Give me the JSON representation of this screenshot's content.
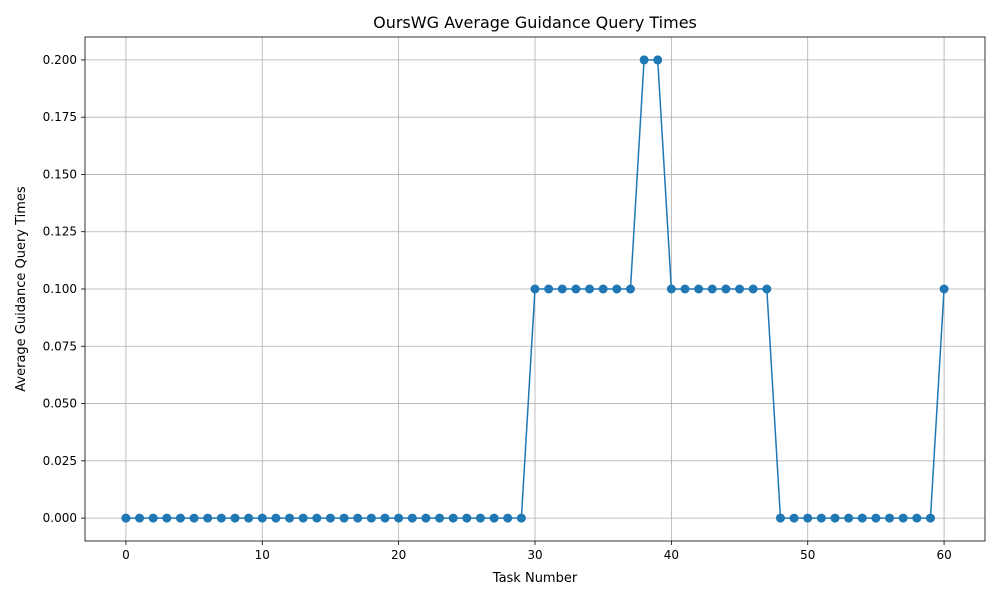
{
  "chart_data": {
    "type": "line",
    "title": "OursWG Average Guidance Query Times",
    "xlabel": "Task Number",
    "ylabel": "Average Guidance Query Times",
    "xlim": [
      -3,
      63
    ],
    "ylim": [
      -0.01,
      0.21
    ],
    "x_ticks": [
      0,
      10,
      20,
      30,
      40,
      50,
      60
    ],
    "x_tick_labels": [
      "0",
      "10",
      "20",
      "30",
      "40",
      "50",
      "60"
    ],
    "y_ticks": [
      0.0,
      0.025,
      0.05,
      0.075,
      0.1,
      0.125,
      0.15,
      0.175,
      0.2
    ],
    "y_tick_labels": [
      "0.000",
      "0.025",
      "0.050",
      "0.075",
      "0.100",
      "0.125",
      "0.150",
      "0.175",
      "0.200"
    ],
    "grid": true,
    "marker": "circle",
    "color": "#1f77b4",
    "series": [
      {
        "x": [
          0,
          1,
          2,
          3,
          4,
          5,
          6,
          7,
          8,
          9,
          10,
          11,
          12,
          13,
          14,
          15,
          16,
          17,
          18,
          19,
          20,
          21,
          22,
          23,
          24,
          25,
          26,
          27,
          28,
          29,
          30,
          31,
          32,
          33,
          34,
          35,
          36,
          37,
          38,
          39,
          40,
          41,
          42,
          43,
          44,
          45,
          46,
          47,
          48,
          49,
          50,
          51,
          52,
          53,
          54,
          55,
          56,
          57,
          58,
          59,
          60
        ],
        "y": [
          0,
          0,
          0,
          0,
          0,
          0,
          0,
          0,
          0,
          0,
          0,
          0,
          0,
          0,
          0,
          0,
          0,
          0,
          0,
          0,
          0,
          0,
          0,
          0,
          0,
          0,
          0,
          0,
          0,
          0,
          0.1,
          0.1,
          0.1,
          0.1,
          0.1,
          0.1,
          0.1,
          0.1,
          0.2,
          0.2,
          0.1,
          0.1,
          0.1,
          0.1,
          0.1,
          0.1,
          0.1,
          0.1,
          0,
          0,
          0,
          0,
          0,
          0,
          0,
          0,
          0,
          0,
          0,
          0,
          0.1
        ]
      }
    ]
  }
}
